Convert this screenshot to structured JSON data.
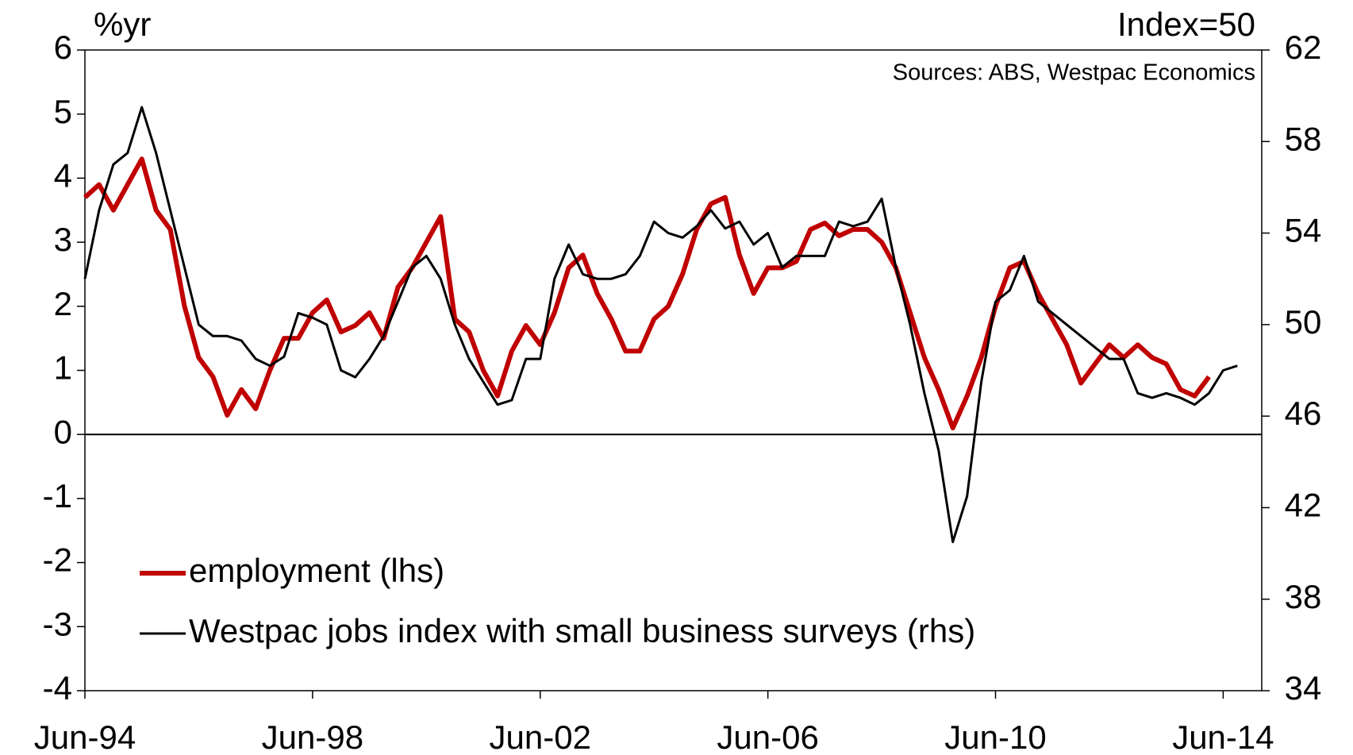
{
  "chart_data": {
    "type": "line",
    "left_unit": "%yr",
    "right_unit": "Index=50",
    "source": "Sources: ABS, Westpac Economics",
    "categories": [
      "Jun-94",
      "Sep-94",
      "Dec-94",
      "Mar-95",
      "Jun-95",
      "Sep-95",
      "Dec-95",
      "Mar-96",
      "Jun-96",
      "Sep-96",
      "Dec-96",
      "Mar-97",
      "Jun-97",
      "Sep-97",
      "Dec-97",
      "Mar-98",
      "Jun-98",
      "Sep-98",
      "Dec-98",
      "Mar-99",
      "Jun-99",
      "Sep-99",
      "Dec-99",
      "Mar-00",
      "Jun-00",
      "Sep-00",
      "Dec-00",
      "Mar-01",
      "Jun-01",
      "Sep-01",
      "Dec-01",
      "Mar-02",
      "Jun-02",
      "Sep-02",
      "Dec-02",
      "Mar-03",
      "Jun-03",
      "Sep-03",
      "Dec-03",
      "Mar-04",
      "Jun-04",
      "Sep-04",
      "Dec-04",
      "Mar-05",
      "Jun-05",
      "Sep-05",
      "Dec-05",
      "Mar-06",
      "Jun-06",
      "Sep-06",
      "Dec-06",
      "Mar-07",
      "Jun-07",
      "Sep-07",
      "Dec-07",
      "Mar-08",
      "Jun-08",
      "Sep-08",
      "Dec-08",
      "Mar-09",
      "Jun-09",
      "Sep-09",
      "Dec-09",
      "Mar-10",
      "Jun-10",
      "Sep-10",
      "Dec-10",
      "Mar-11",
      "Jun-11",
      "Sep-11",
      "Dec-11",
      "Mar-12",
      "Jun-12",
      "Sep-12",
      "Dec-12",
      "Mar-13",
      "Jun-13",
      "Sep-13",
      "Dec-13",
      "Mar-14",
      "Jun-14",
      "Sep-14"
    ],
    "series": [
      {
        "name": "employment (lhs)",
        "color": "#c00000",
        "axis": "y",
        "values": [
          3.7,
          3.9,
          3.5,
          3.9,
          4.3,
          3.5,
          3.2,
          2.0,
          1.2,
          0.9,
          0.3,
          0.7,
          0.4,
          1.0,
          1.5,
          1.5,
          1.9,
          2.1,
          1.6,
          1.7,
          1.9,
          1.5,
          2.3,
          2.6,
          3.0,
          3.4,
          1.8,
          1.6,
          1.0,
          0.6,
          1.3,
          1.7,
          1.4,
          1.9,
          2.6,
          2.8,
          2.2,
          1.8,
          1.3,
          1.3,
          1.8,
          2.0,
          2.5,
          3.2,
          3.6,
          3.7,
          2.8,
          2.2,
          2.6,
          2.6,
          2.7,
          3.2,
          3.3,
          3.1,
          3.2,
          3.2,
          3.0,
          2.6,
          1.9,
          1.2,
          0.7,
          0.1,
          0.6,
          1.2,
          2.0,
          2.6,
          2.7,
          2.2,
          1.8,
          1.4,
          0.8,
          1.1,
          1.4,
          1.2,
          1.4,
          1.2,
          1.1,
          0.7,
          0.6,
          0.9,
          null,
          null
        ]
      },
      {
        "name": "Westpac jobs index with small business surveys (rhs)",
        "color": "#000000",
        "axis": "y2",
        "values": [
          52.0,
          55.0,
          57.0,
          57.5,
          59.5,
          57.5,
          55.0,
          52.5,
          50.0,
          49.5,
          49.5,
          49.3,
          48.5,
          48.2,
          48.6,
          50.5,
          50.3,
          50.0,
          48.0,
          47.7,
          48.5,
          49.5,
          51.0,
          52.5,
          53.0,
          52.0,
          50.0,
          48.5,
          47.5,
          46.5,
          46.7,
          48.5,
          48.5,
          52.0,
          53.5,
          52.2,
          52.0,
          52.0,
          52.2,
          53.0,
          54.5,
          54.0,
          53.8,
          54.3,
          55.0,
          54.2,
          54.5,
          53.5,
          54.0,
          52.5,
          53.0,
          53.0,
          53.0,
          54.5,
          54.3,
          54.5,
          55.5,
          52.5,
          50.0,
          47.0,
          44.5,
          40.5,
          42.5,
          47.5,
          51.0,
          51.5,
          53.0,
          51.0,
          50.5,
          50.0,
          49.5,
          49.0,
          48.5,
          48.5,
          47.0,
          46.8,
          47.0,
          46.8,
          46.5,
          47.0,
          48.0,
          48.2
        ]
      }
    ],
    "xticks": [
      "Jun-94",
      "Jun-98",
      "Jun-02",
      "Jun-06",
      "Jun-10",
      "Jun-14"
    ],
    "ylim": [
      -4,
      6
    ],
    "yticks": [
      -4,
      -3,
      -2,
      -1,
      0,
      1,
      2,
      3,
      4,
      5,
      6
    ],
    "y2lim": [
      34,
      62
    ],
    "y2ticks": [
      34,
      38,
      42,
      46,
      50,
      54,
      58,
      62
    ],
    "legend": "lower left"
  }
}
